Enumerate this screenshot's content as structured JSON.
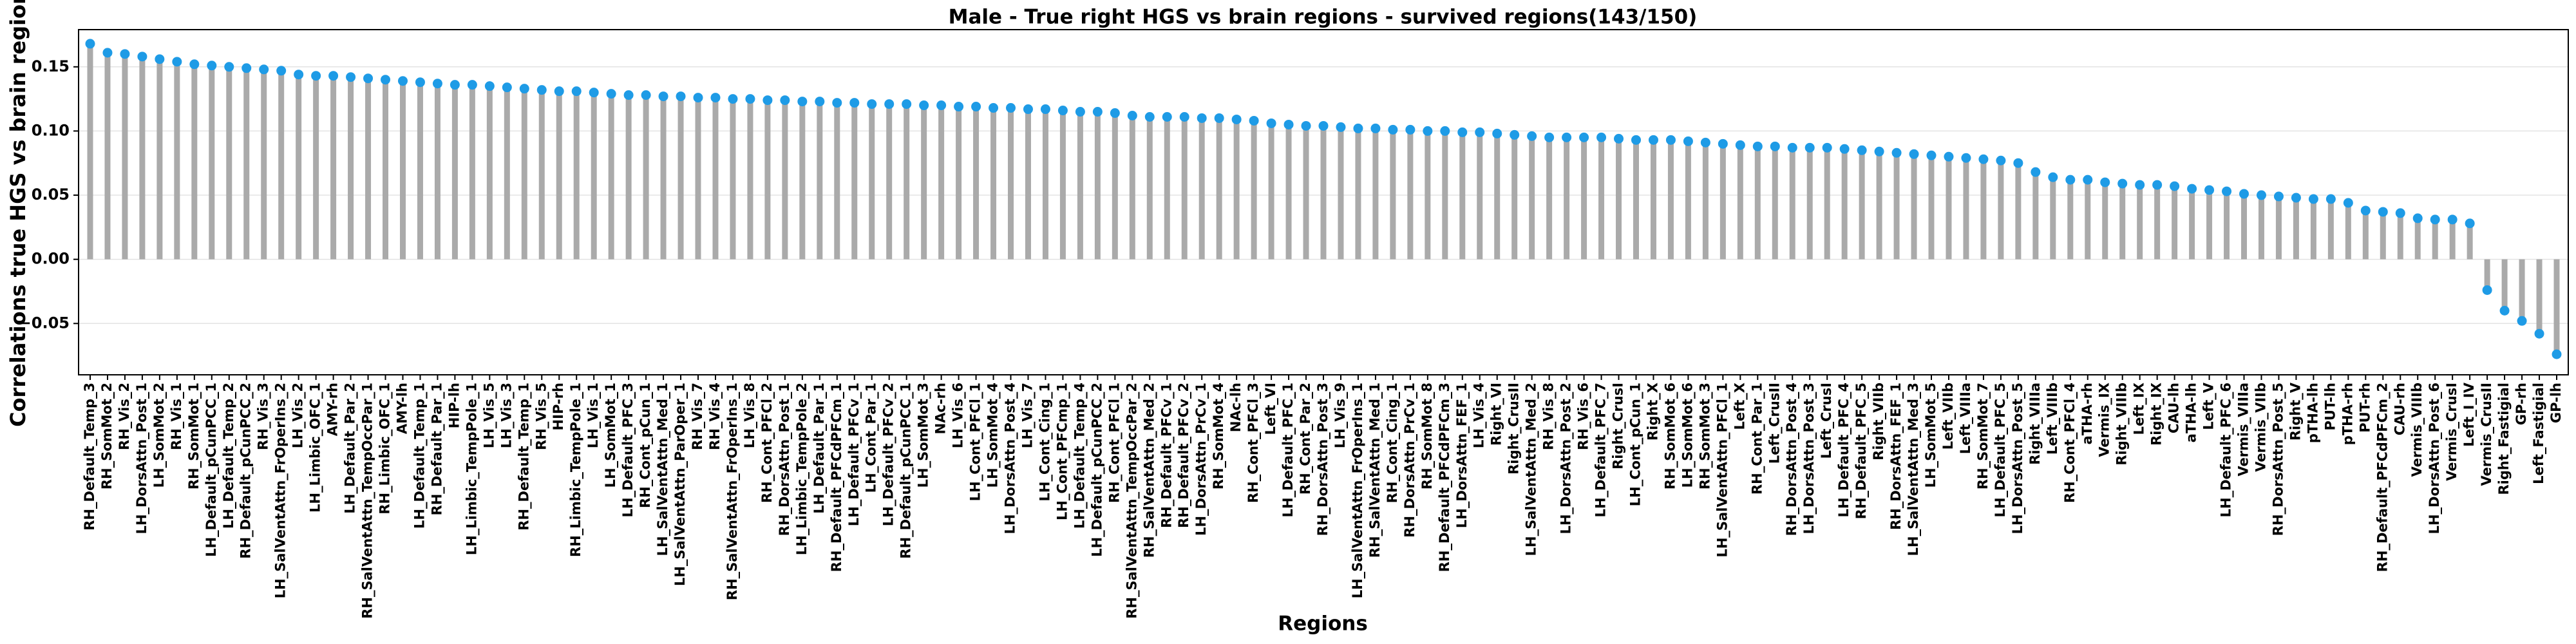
{
  "chart_data": {
    "type": "lollipop",
    "title": "Male - True right HGS vs brain regions - survived regions(143/150)",
    "x_label": "Regions",
    "y_label": "Correlations true HGS vs brain regions",
    "stem_color": "#aaaaaa",
    "color": "#1e9be6",
    "grid": true,
    "ylim": [
      -0.09,
      0.179
    ],
    "yticks": [
      {
        "value": -0.05,
        "label": "−0.05"
      },
      {
        "value": 0,
        "label": "0.00"
      },
      {
        "value": 0.05,
        "label": "0.05"
      },
      {
        "value": 0.1,
        "label": "0.10"
      },
      {
        "value": 0.15,
        "label": "0.15"
      }
    ],
    "categories": [
      "RH_Default_Temp_3",
      "RH_SomMot_2",
      "RH_Vis_2",
      "LH_DorsAttn_Post_1",
      "LH_SomMot_2",
      "RH_Vis_1",
      "RH_SomMot_1",
      "LH_Default_pCunPCC_1",
      "LH_Default_Temp_2",
      "RH_Default_pCunPCC_2",
      "RH_Vis_3",
      "LH_SalVentAttn_FrOperIns_2",
      "LH_Vis_2",
      "LH_Limbic_OFC_1",
      "AMY-rh",
      "LH_Default_Par_2",
      "RH_SalVentAttn_TempOccPar_1",
      "RH_Limbic_OFC_1",
      "AMY-lh",
      "LH_Default_Temp_1",
      "RH_Default_Par_1",
      "HIP-lh",
      "LH_Limbic_TempPole_1",
      "LH_Vis_5",
      "LH_Vis_3",
      "RH_Default_Temp_1",
      "RH_Vis_5",
      "HIP-rh",
      "RH_Limbic_TempPole_1",
      "LH_Vis_1",
      "LH_SomMot_1",
      "LH_Default_PFC_3",
      "RH_Cont_pCun_1",
      "LH_SalVentAttn_Med_1",
      "LH_SalVentAttn_ParOper_1",
      "RH_Vis_7",
      "RH_Vis_4",
      "RH_SalVentAttn_FrOperIns_1",
      "LH_Vis_8",
      "RH_Cont_PFCl_2",
      "RH_DorsAttn_Post_1",
      "LH_Limbic_TempPole_2",
      "LH_Default_Par_1",
      "RH_Default_PFCdPFCm_1",
      "LH_Default_PFCv_1",
      "LH_Cont_Par_1",
      "LH_Default_PFCv_2",
      "RH_Default_pCunPCC_1",
      "LH_SomMot_3",
      "NAc-rh",
      "LH_Vis_6",
      "LH_Cont_PFCl_1",
      "LH_SomMot_4",
      "LH_DorsAttn_Post_4",
      "LH_Vis_7",
      "LH_Cont_Cing_1",
      "LH_Cont_PFCmp_1",
      "LH_Default_Temp_4",
      "LH_Default_pCunPCC_2",
      "RH_Cont_PFCl_1",
      "RH_SalVentAttn_TempOccPar_2",
      "RH_SalVentAttn_Med_2",
      "RH_Default_PFCv_1",
      "RH_Default_PFCv_2",
      "LH_DorsAttn_PrCv_1",
      "RH_SomMot_4",
      "NAc-lh",
      "RH_Cont_PFCl_3",
      "Left_VI",
      "LH_Default_PFC_1",
      "RH_Cont_Par_2",
      "RH_DorsAttn_Post_3",
      "LH_Vis_9",
      "LH_SalVentAttn_FrOperIns_1",
      "RH_SalVentAttn_Med_1",
      "RH_Cont_Cing_1",
      "RH_DorsAttn_PrCv_1",
      "RH_SomMot_8",
      "RH_Default_PFCdPFCm_3",
      "LH_DorsAttn_FEF_1",
      "LH_Vis_4",
      "Right_VI",
      "Right_CrusII",
      "LH_SalVentAttn_Med_2",
      "RH_Vis_8",
      "LH_DorsAttn_Post_2",
      "RH_Vis_6",
      "LH_Default_PFC_7",
      "Right_CrusI",
      "LH_Cont_pCun_1",
      "Right_X",
      "RH_SomMot_6",
      "LH_SomMot_6",
      "RH_SomMot_3",
      "LH_SalVentAttn_PFCl_1",
      "Left_X",
      "RH_Cont_Par_1",
      "Left_CrusII",
      "RH_DorsAttn_Post_4",
      "LH_DorsAttn_Post_3",
      "Left_CrusI",
      "LH_Default_PFC_4",
      "RH_Default_PFC_5",
      "Right_VIIb",
      "RH_DorsAttn_FEF_1",
      "LH_SalVentAttn_Med_3",
      "LH_SomMot_5",
      "Left_VIIb",
      "Left_VIIIa",
      "RH_SomMot_7",
      "LH_Default_PFC_5",
      "LH_DorsAttn_Post_5",
      "Right_VIIIa",
      "Left_VIIIb",
      "RH_Cont_PFCl_4",
      "aTHA-rh",
      "Vermis_IX",
      "Right_VIIIb",
      "Left_IX",
      "Right_IX",
      "CAU-lh",
      "aTHA-lh",
      "Left_V",
      "LH_Default_PFC_6",
      "Vermis_VIIIa",
      "Vermis_VIIb",
      "RH_DorsAttn_Post_5",
      "Right_V",
      "pTHA-lh",
      "PUT-lh",
      "pTHA-rh",
      "PUT-rh",
      "RH_Default_PFCdPFCm_2",
      "CAU-rh",
      "Vermis_VIIIb",
      "LH_DorsAttn_Post_6",
      "Vermis_CrusI",
      "Left_I_IV",
      "Vermis_CrusII",
      "Right_Fastigial",
      "GP-rh",
      "Left_Fastigial",
      "GP-lh"
    ],
    "values": [
      0.168,
      0.161,
      0.16,
      0.158,
      0.156,
      0.154,
      0.152,
      0.151,
      0.15,
      0.149,
      0.148,
      0.147,
      0.144,
      0.143,
      0.143,
      0.142,
      0.141,
      0.14,
      0.139,
      0.138,
      0.137,
      0.136,
      0.136,
      0.135,
      0.134,
      0.133,
      0.132,
      0.131,
      0.131,
      0.13,
      0.129,
      0.128,
      0.128,
      0.127,
      0.127,
      0.126,
      0.126,
      0.125,
      0.125,
      0.124,
      0.124,
      0.123,
      0.123,
      0.122,
      0.122,
      0.121,
      0.121,
      0.121,
      0.12,
      0.12,
      0.119,
      0.119,
      0.118,
      0.118,
      0.117,
      0.117,
      0.116,
      0.115,
      0.115,
      0.114,
      0.112,
      0.111,
      0.111,
      0.111,
      0.11,
      0.11,
      0.109,
      0.108,
      0.106,
      0.105,
      0.104,
      0.104,
      0.103,
      0.102,
      0.102,
      0.101,
      0.101,
      0.1,
      0.1,
      0.099,
      0.099,
      0.098,
      0.097,
      0.096,
      0.095,
      0.095,
      0.095,
      0.095,
      0.094,
      0.093,
      0.093,
      0.093,
      0.092,
      0.091,
      0.09,
      0.089,
      0.088,
      0.088,
      0.087,
      0.087,
      0.087,
      0.086,
      0.085,
      0.084,
      0.083,
      0.082,
      0.081,
      0.08,
      0.079,
      0.078,
      0.077,
      0.075,
      0.068,
      0.064,
      0.062,
      0.062,
      0.06,
      0.059,
      0.058,
      0.058,
      0.057,
      0.055,
      0.054,
      0.053,
      0.051,
      0.05,
      0.049,
      0.048,
      0.047,
      0.047,
      0.044,
      0.038,
      0.037,
      0.036,
      0.032,
      0.031,
      0.031,
      0.028,
      -0.024,
      -0.04,
      -0.048,
      -0.058,
      -0.074
    ]
  }
}
